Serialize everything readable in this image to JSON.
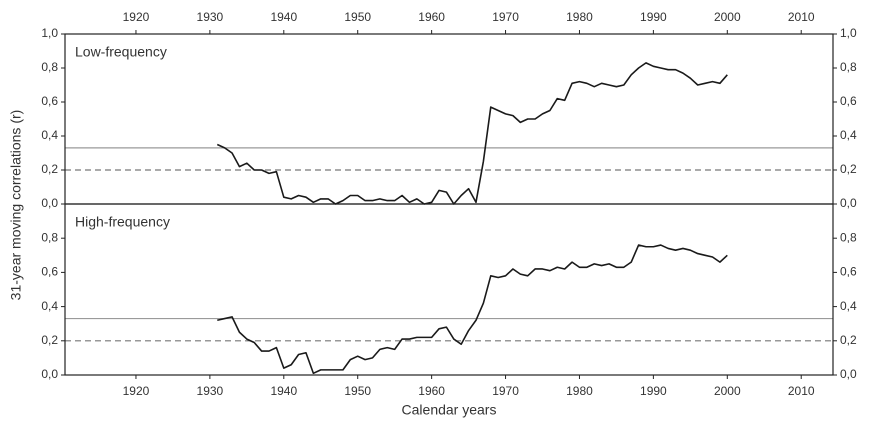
{
  "shared": {
    "xlabel": "Calendar years",
    "ylabel": "31-year moving correlations (r)"
  },
  "chart_data": [
    {
      "type": "line",
      "title": "Low-frequency",
      "color": "#1a1a1a",
      "x": [
        1931,
        1932,
        1933,
        1934,
        1935,
        1936,
        1937,
        1938,
        1939,
        1940,
        1941,
        1942,
        1943,
        1944,
        1945,
        1946,
        1947,
        1948,
        1949,
        1950,
        1951,
        1952,
        1953,
        1954,
        1955,
        1956,
        1957,
        1958,
        1959,
        1960,
        1961,
        1962,
        1963,
        1964,
        1965,
        1966,
        1967,
        1968,
        1969,
        1970,
        1971,
        1972,
        1973,
        1974,
        1975,
        1976,
        1977,
        1978,
        1979,
        1980,
        1981,
        1982,
        1983,
        1984,
        1985,
        1986,
        1987,
        1988,
        1989,
        1990,
        1991,
        1992,
        1993,
        1994,
        1995,
        1996,
        1997,
        1998,
        1999,
        2000
      ],
      "values": [
        0.35,
        0.33,
        0.3,
        0.22,
        0.24,
        0.2,
        0.2,
        0.18,
        0.19,
        0.04,
        0.03,
        0.05,
        0.04,
        0.01,
        0.03,
        0.03,
        0.0,
        0.02,
        0.05,
        0.05,
        0.02,
        0.02,
        0.03,
        0.02,
        0.02,
        0.05,
        0.01,
        0.03,
        0.0,
        0.01,
        0.08,
        0.07,
        0.0,
        0.05,
        0.09,
        0.01,
        0.25,
        0.57,
        0.55,
        0.53,
        0.52,
        0.48,
        0.5,
        0.5,
        0.53,
        0.55,
        0.62,
        0.61,
        0.71,
        0.72,
        0.71,
        0.69,
        0.71,
        0.7,
        0.69,
        0.7,
        0.76,
        0.8,
        0.83,
        0.81,
        0.8,
        0.79,
        0.79,
        0.77,
        0.74,
        0.7,
        0.71,
        0.72,
        0.71,
        0.76
      ],
      "xlim": [
        1910.4,
        2014.3
      ],
      "xticks": [
        1920,
        1930,
        1940,
        1950,
        1960,
        1970,
        1980,
        1990,
        2000,
        2010
      ],
      "ylim": [
        0,
        1.0
      ],
      "yticks": [
        {
          "value": 0,
          "label": "0,0"
        },
        {
          "value": 0.2,
          "label": "0,2"
        },
        {
          "value": 0.4,
          "label": "0,4"
        },
        {
          "value": 0.6,
          "label": "0,6"
        },
        {
          "value": 0.8,
          "label": "0,8"
        },
        {
          "value": 1.0,
          "label": "1,0"
        }
      ],
      "reference_lines": [
        {
          "value": 0.33,
          "style": "solid",
          "color": "#9a9a9a"
        },
        {
          "value": 0.2,
          "style": "dashed",
          "color": "#777777"
        }
      ]
    },
    {
      "type": "line",
      "title": "High-frequency",
      "color": "#1a1a1a",
      "x": [
        1931,
        1932,
        1933,
        1934,
        1935,
        1936,
        1937,
        1938,
        1939,
        1940,
        1941,
        1942,
        1943,
        1944,
        1945,
        1946,
        1947,
        1948,
        1949,
        1950,
        1951,
        1952,
        1953,
        1954,
        1955,
        1956,
        1957,
        1958,
        1959,
        1960,
        1961,
        1962,
        1963,
        1964,
        1965,
        1966,
        1967,
        1968,
        1969,
        1970,
        1971,
        1972,
        1973,
        1974,
        1975,
        1976,
        1977,
        1978,
        1979,
        1980,
        1981,
        1982,
        1983,
        1984,
        1985,
        1986,
        1987,
        1988,
        1989,
        1990,
        1991,
        1992,
        1993,
        1994,
        1995,
        1996,
        1997,
        1998,
        1999,
        2000
      ],
      "values": [
        0.32,
        0.33,
        0.34,
        0.25,
        0.21,
        0.19,
        0.14,
        0.14,
        0.16,
        0.04,
        0.06,
        0.12,
        0.13,
        0.01,
        0.03,
        0.03,
        0.03,
        0.03,
        0.09,
        0.11,
        0.09,
        0.1,
        0.15,
        0.16,
        0.15,
        0.21,
        0.21,
        0.22,
        0.22,
        0.22,
        0.27,
        0.28,
        0.21,
        0.18,
        0.26,
        0.32,
        0.42,
        0.58,
        0.57,
        0.58,
        0.62,
        0.59,
        0.58,
        0.62,
        0.62,
        0.61,
        0.63,
        0.62,
        0.66,
        0.63,
        0.63,
        0.65,
        0.64,
        0.65,
        0.63,
        0.63,
        0.66,
        0.76,
        0.75,
        0.75,
        0.76,
        0.74,
        0.73,
        0.74,
        0.73,
        0.71,
        0.7,
        0.69,
        0.66,
        0.7
      ],
      "xlim": [
        1910.4,
        2014.3
      ],
      "xticks": [
        1920,
        1930,
        1940,
        1950,
        1960,
        1970,
        1980,
        1990,
        2000,
        2010
      ],
      "ylim": [
        0,
        1.0
      ],
      "yticks": [
        {
          "value": 0,
          "label": "0,0"
        },
        {
          "value": 0.2,
          "label": "0,2"
        },
        {
          "value": 0.4,
          "label": "0,4"
        },
        {
          "value": 0.6,
          "label": "0,6"
        },
        {
          "value": 0.8,
          "label": "0,8"
        }
      ],
      "reference_lines": [
        {
          "value": 0.33,
          "style": "solid",
          "color": "#9a9a9a"
        },
        {
          "value": 0.2,
          "style": "dashed",
          "color": "#777777"
        }
      ]
    }
  ]
}
